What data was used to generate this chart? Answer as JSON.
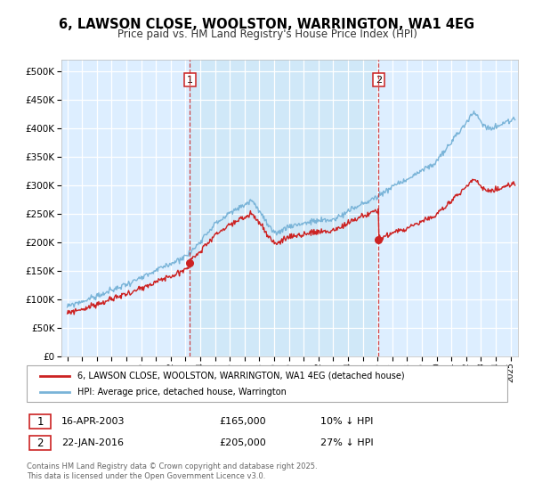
{
  "title": "6, LAWSON CLOSE, WOOLSTON, WARRINGTON, WA1 4EG",
  "subtitle": "Price paid vs. HM Land Registry's House Price Index (HPI)",
  "legend_line1": "6, LAWSON CLOSE, WOOLSTON, WARRINGTON, WA1 4EG (detached house)",
  "legend_line2": "HPI: Average price, detached house, Warrington",
  "hpi_color": "#7ab4d8",
  "price_color": "#cc2222",
  "sale1_date": 2003.29,
  "sale1_price": 165000,
  "sale1_label": "16-APR-2003",
  "sale1_hpi_diff": "10% ↓ HPI",
  "sale2_date": 2016.06,
  "sale2_price": 205000,
  "sale2_label": "22-JAN-2016",
  "sale2_hpi_diff": "27% ↓ HPI",
  "plot_bg_color": "#ddeeff",
  "shaded_bg_color": "#d0e8f8",
  "grid_color": "#ffffff",
  "footer": "Contains HM Land Registry data © Crown copyright and database right 2025.\nThis data is licensed under the Open Government Licence v3.0.",
  "ylim": [
    0,
    520000
  ],
  "yticks": [
    0,
    50000,
    100000,
    150000,
    200000,
    250000,
    300000,
    350000,
    400000,
    450000,
    500000
  ],
  "xlim_start": 1994.6,
  "xlim_end": 2025.5
}
